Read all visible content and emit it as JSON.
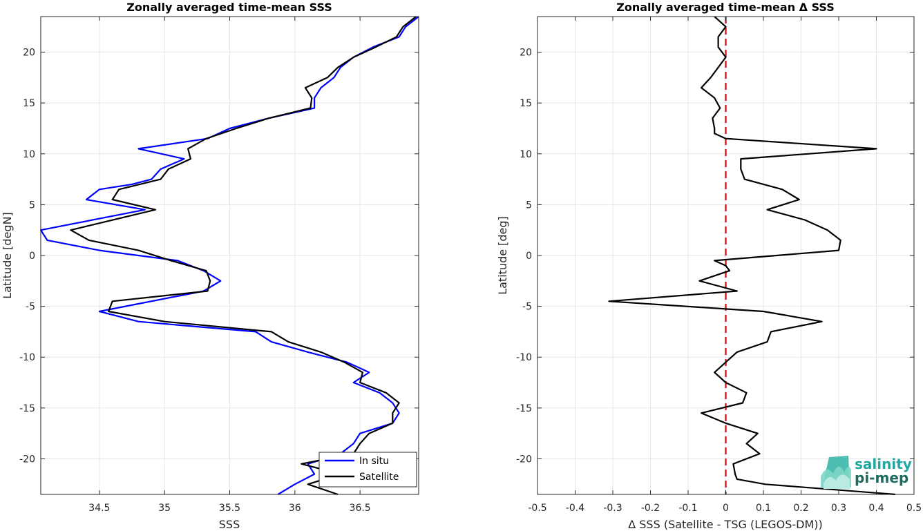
{
  "colors": {
    "in_situ": "#0000ff",
    "satellite": "#000000",
    "zero_line": "#e31a1c",
    "grid": "#e6e6e6",
    "logo_top": "#22a6a0",
    "logo_bottom": "#1d6b5f"
  },
  "logo": {
    "line1": "salinity",
    "line2": "pi-mep",
    "icon": "salinity-wave-icon"
  },
  "chart_data": [
    {
      "type": "line",
      "title": "Zonally averaged time-mean SSS",
      "xlabel": "SSS",
      "ylabel": "Latitude [degN]",
      "xlim": [
        34.05,
        36.95
      ],
      "ylim": [
        -23.5,
        23.5
      ],
      "xticks": [
        34.5,
        35,
        35.5,
        36,
        36.5
      ],
      "xtick_labels": [
        "34.5",
        "35",
        "35.5",
        "36",
        "36.5"
      ],
      "yticks": [
        -20,
        -15,
        -10,
        -5,
        0,
        5,
        10,
        15,
        20
      ],
      "ytick_labels": [
        "-20",
        "-15",
        "-10",
        "-5",
        "0",
        "5",
        "10",
        "15",
        "20"
      ],
      "grid": true,
      "legend_position": "bottom-right",
      "series": [
        {
          "name": "In situ",
          "color": "#0000ff",
          "points": [
            [
              36.95,
              23.5
            ],
            [
              36.85,
              22.5
            ],
            [
              36.8,
              21.5
            ],
            [
              36.6,
              20.5
            ],
            [
              36.45,
              19.5
            ],
            [
              36.35,
              18.5
            ],
            [
              36.3,
              17.5
            ],
            [
              36.2,
              16.5
            ],
            [
              36.15,
              15.5
            ],
            [
              36.15,
              14.5
            ],
            [
              35.8,
              13.5
            ],
            [
              35.5,
              12.5
            ],
            [
              35.33,
              11.5
            ],
            [
              34.8,
              10.5
            ],
            [
              35.15,
              9.5
            ],
            [
              34.97,
              8.5
            ],
            [
              34.9,
              7.5
            ],
            [
              34.75,
              7.0
            ],
            [
              34.5,
              6.5
            ],
            [
              34.4,
              5.5
            ],
            [
              34.85,
              4.5
            ],
            [
              34.05,
              2.5
            ],
            [
              34.1,
              1.5
            ],
            [
              34.5,
              0.5
            ],
            [
              35.1,
              -0.5
            ],
            [
              35.3,
              -1.5
            ],
            [
              35.43,
              -2.5
            ],
            [
              35.3,
              -3.5
            ],
            [
              34.5,
              -5.5
            ],
            [
              34.8,
              -6.5
            ],
            [
              35.7,
              -7.5
            ],
            [
              35.82,
              -8.5
            ],
            [
              36.1,
              -9.5
            ],
            [
              36.4,
              -10.5
            ],
            [
              36.57,
              -11.5
            ],
            [
              36.45,
              -12.5
            ],
            [
              36.65,
              -13.5
            ],
            [
              36.75,
              -14.5
            ],
            [
              36.8,
              -15.5
            ],
            [
              36.75,
              -16.5
            ],
            [
              36.5,
              -17.5
            ],
            [
              36.45,
              -18.5
            ],
            [
              36.35,
              -19.5
            ],
            [
              36.1,
              -20.5
            ],
            [
              36.15,
              -21.5
            ],
            [
              36.0,
              -22.5
            ],
            [
              35.87,
              -23.5
            ]
          ]
        },
        {
          "name": "Satellite",
          "color": "#000000",
          "points": [
            [
              36.93,
              23.5
            ],
            [
              36.83,
              22.5
            ],
            [
              36.78,
              21.5
            ],
            [
              36.62,
              20.5
            ],
            [
              36.45,
              19.5
            ],
            [
              36.33,
              18.5
            ],
            [
              36.25,
              17.5
            ],
            [
              36.08,
              16.5
            ],
            [
              36.13,
              15.5
            ],
            [
              36.12,
              14.5
            ],
            [
              35.8,
              13.5
            ],
            [
              35.55,
              12.5
            ],
            [
              35.32,
              11.5
            ],
            [
              35.18,
              10.5
            ],
            [
              35.2,
              9.5
            ],
            [
              35.03,
              8.5
            ],
            [
              34.97,
              7.5
            ],
            [
              34.65,
              6.5
            ],
            [
              34.6,
              5.5
            ],
            [
              34.93,
              4.5
            ],
            [
              34.28,
              2.5
            ],
            [
              34.42,
              1.5
            ],
            [
              34.8,
              0.5
            ],
            [
              35.05,
              -0.5
            ],
            [
              35.32,
              -1.5
            ],
            [
              35.35,
              -2.5
            ],
            [
              35.33,
              -3.5
            ],
            [
              34.6,
              -4.5
            ],
            [
              34.57,
              -5.5
            ],
            [
              35.0,
              -6.5
            ],
            [
              35.82,
              -7.5
            ],
            [
              35.95,
              -8.5
            ],
            [
              36.2,
              -9.5
            ],
            [
              36.38,
              -10.5
            ],
            [
              36.52,
              -11.5
            ],
            [
              36.5,
              -12.5
            ],
            [
              36.7,
              -13.5
            ],
            [
              36.8,
              -14.5
            ],
            [
              36.75,
              -15.5
            ],
            [
              36.75,
              -16.5
            ],
            [
              36.57,
              -17.5
            ],
            [
              36.5,
              -18.5
            ],
            [
              36.45,
              -19.5
            ],
            [
              36.05,
              -20.5
            ],
            [
              36.35,
              -21.5
            ],
            [
              36.1,
              -22.5
            ],
            [
              36.33,
              -23.5
            ]
          ]
        }
      ]
    },
    {
      "type": "line",
      "title": "Zonally averaged time-mean Δ SSS",
      "xlabel": "Δ SSS (Satellite - TSG (LEGOS-DM))",
      "ylabel": "Latitude [deg]",
      "xlim": [
        -0.5,
        0.5
      ],
      "ylim": [
        -23.5,
        23.5
      ],
      "xticks": [
        -0.5,
        -0.4,
        -0.3,
        -0.2,
        -0.1,
        0,
        0.1,
        0.2,
        0.3,
        0.4,
        0.5
      ],
      "xtick_labels": [
        "-0.5",
        "-0.4",
        "-0.3",
        "-0.2",
        "-0.1",
        "0",
        "0.1",
        "0.2",
        "0.3",
        "0.4",
        "0.5"
      ],
      "yticks": [
        -20,
        -15,
        -10,
        -5,
        0,
        5,
        10,
        15,
        20
      ],
      "ytick_labels": [
        "-20",
        "-15",
        "-10",
        "-5",
        "0",
        "5",
        "10",
        "15",
        "20"
      ],
      "grid": true,
      "reference_line": {
        "x": 0,
        "style": "dashed",
        "color": "#e31a1c"
      },
      "series": [
        {
          "color": "#000000",
          "points": [
            [
              -0.03,
              23.5
            ],
            [
              0.0,
              22.5
            ],
            [
              -0.02,
              21.5
            ],
            [
              -0.02,
              20.5
            ],
            [
              0.0,
              19.5
            ],
            [
              -0.02,
              18.5
            ],
            [
              -0.04,
              17.5
            ],
            [
              -0.065,
              16.5
            ],
            [
              -0.03,
              15.5
            ],
            [
              -0.015,
              14.5
            ],
            [
              -0.035,
              13.5
            ],
            [
              -0.03,
              12.5
            ],
            [
              -0.03,
              12.0
            ],
            [
              0.0,
              11.5
            ],
            [
              0.4,
              10.5
            ],
            [
              0.04,
              9.5
            ],
            [
              0.04,
              8.5
            ],
            [
              0.05,
              7.5
            ],
            [
              0.15,
              6.5
            ],
            [
              0.195,
              5.5
            ],
            [
              0.11,
              4.5
            ],
            [
              0.21,
              3.5
            ],
            [
              0.27,
              2.5
            ],
            [
              0.305,
              1.5
            ],
            [
              0.3,
              0.5
            ],
            [
              -0.03,
              -0.5
            ],
            [
              0.0,
              -1.0
            ],
            [
              0.01,
              -1.5
            ],
            [
              -0.07,
              -2.5
            ],
            [
              0.03,
              -3.5
            ],
            [
              -0.31,
              -4.5
            ],
            [
              0.1,
              -5.5
            ],
            [
              0.255,
              -6.5
            ],
            [
              0.12,
              -7.5
            ],
            [
              0.11,
              -8.5
            ],
            [
              0.03,
              -9.5
            ],
            [
              0.0,
              -10.5
            ],
            [
              -0.03,
              -11.5
            ],
            [
              0.0,
              -12.5
            ],
            [
              0.055,
              -13.5
            ],
            [
              0.045,
              -14.5
            ],
            [
              -0.065,
              -15.5
            ],
            [
              0.0,
              -16.5
            ],
            [
              0.085,
              -17.5
            ],
            [
              0.055,
              -18.5
            ],
            [
              0.09,
              -19.5
            ],
            [
              0.02,
              -20.5
            ],
            [
              0.025,
              -21.5
            ],
            [
              0.03,
              -22.0
            ],
            [
              0.105,
              -22.5
            ],
            [
              0.45,
              -23.5
            ]
          ]
        }
      ]
    }
  ]
}
